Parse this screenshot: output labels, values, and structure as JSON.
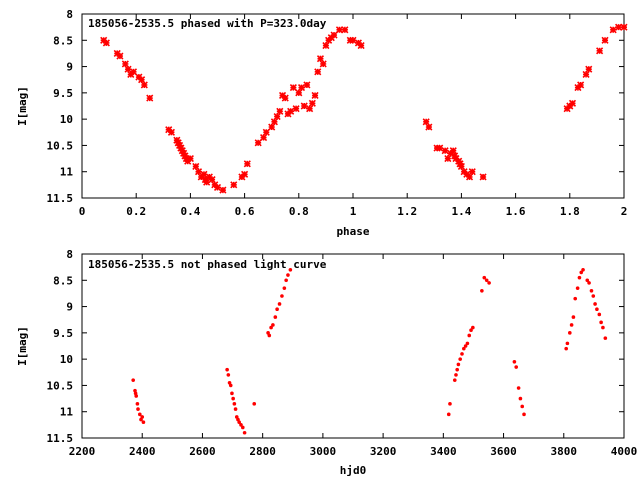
{
  "chart_data": [
    {
      "type": "scatter",
      "title": "185056-2535.5 phased with P=323.0day",
      "xlabel": "phase",
      "ylabel": "I[mag]",
      "xlim": [
        0,
        2
      ],
      "ylim": [
        11.5,
        8
      ],
      "y_inverted": true,
      "x_ticks": [
        "0",
        "0.2",
        "0.4",
        "0.6",
        "0.8",
        "1",
        "1.2",
        "1.4",
        "1.6",
        "1.8",
        "2"
      ],
      "x_tick_values": [
        0,
        0.2,
        0.4,
        0.6,
        0.8,
        1.0,
        1.2,
        1.4,
        1.6,
        1.8,
        2.0
      ],
      "y_ticks": [
        "8",
        "8.5",
        "9",
        "9.5",
        "10",
        "10.5",
        "11",
        "11.5"
      ],
      "y_tick_values": [
        8,
        8.5,
        9,
        9.5,
        10,
        10.5,
        11,
        11.5
      ],
      "grid": false,
      "marker_color": "#ff0000",
      "marker": "cross",
      "points": [
        [
          0.08,
          8.5
        ],
        [
          0.09,
          8.55
        ],
        [
          0.13,
          8.75
        ],
        [
          0.14,
          8.8
        ],
        [
          0.16,
          8.95
        ],
        [
          0.17,
          9.05
        ],
        [
          0.18,
          9.15
        ],
        [
          0.19,
          9.1
        ],
        [
          0.21,
          9.2
        ],
        [
          0.22,
          9.25
        ],
        [
          0.23,
          9.35
        ],
        [
          0.25,
          9.6
        ],
        [
          0.32,
          10.2
        ],
        [
          0.33,
          10.25
        ],
        [
          0.35,
          10.4
        ],
        [
          0.355,
          10.45
        ],
        [
          0.36,
          10.5
        ],
        [
          0.365,
          10.55
        ],
        [
          0.37,
          10.6
        ],
        [
          0.375,
          10.65
        ],
        [
          0.38,
          10.7
        ],
        [
          0.385,
          10.75
        ],
        [
          0.39,
          10.8
        ],
        [
          0.4,
          10.75
        ],
        [
          0.42,
          10.9
        ],
        [
          0.43,
          11.0
        ],
        [
          0.44,
          11.1
        ],
        [
          0.45,
          11.05
        ],
        [
          0.455,
          11.15
        ],
        [
          0.46,
          11.2
        ],
        [
          0.47,
          11.1
        ],
        [
          0.48,
          11.15
        ],
        [
          0.49,
          11.25
        ],
        [
          0.5,
          11.3
        ],
        [
          0.52,
          11.35
        ],
        [
          0.56,
          11.25
        ],
        [
          0.59,
          11.1
        ],
        [
          0.6,
          11.05
        ],
        [
          0.61,
          10.85
        ],
        [
          0.65,
          10.45
        ],
        [
          0.67,
          10.35
        ],
        [
          0.68,
          10.25
        ],
        [
          0.7,
          10.15
        ],
        [
          0.71,
          10.05
        ],
        [
          0.72,
          9.95
        ],
        [
          0.73,
          9.85
        ],
        [
          0.74,
          9.55
        ],
        [
          0.75,
          9.6
        ],
        [
          0.76,
          9.9
        ],
        [
          0.77,
          9.85
        ],
        [
          0.78,
          9.4
        ],
        [
          0.79,
          9.8
        ],
        [
          0.8,
          9.5
        ],
        [
          0.81,
          9.4
        ],
        [
          0.82,
          9.75
        ],
        [
          0.83,
          9.35
        ],
        [
          0.84,
          9.8
        ],
        [
          0.85,
          9.7
        ],
        [
          0.86,
          9.55
        ],
        [
          0.87,
          9.1
        ],
        [
          0.88,
          8.85
        ],
        [
          0.89,
          8.95
        ],
        [
          0.9,
          8.6
        ],
        [
          0.91,
          8.5
        ],
        [
          0.92,
          8.45
        ],
        [
          0.93,
          8.4
        ],
        [
          0.95,
          8.3
        ],
        [
          0.97,
          8.3
        ],
        [
          0.99,
          8.5
        ],
        [
          1.0,
          8.5
        ],
        [
          1.02,
          8.55
        ],
        [
          1.03,
          8.6
        ],
        [
          1.27,
          10.05
        ],
        [
          1.28,
          10.15
        ],
        [
          1.31,
          10.55
        ],
        [
          1.32,
          10.55
        ],
        [
          1.34,
          10.6
        ],
        [
          1.35,
          10.75
        ],
        [
          1.36,
          10.65
        ],
        [
          1.37,
          10.6
        ],
        [
          1.375,
          10.7
        ],
        [
          1.38,
          10.75
        ],
        [
          1.39,
          10.8
        ],
        [
          1.395,
          10.85
        ],
        [
          1.4,
          10.9
        ],
        [
          1.41,
          11.0
        ],
        [
          1.42,
          11.05
        ],
        [
          1.43,
          11.1
        ],
        [
          1.44,
          11.0
        ],
        [
          1.48,
          11.1
        ],
        [
          1.79,
          9.8
        ],
        [
          1.8,
          9.75
        ],
        [
          1.81,
          9.7
        ],
        [
          1.83,
          9.4
        ],
        [
          1.84,
          9.35
        ],
        [
          1.86,
          9.15
        ],
        [
          1.87,
          9.05
        ],
        [
          1.91,
          8.7
        ],
        [
          1.93,
          8.5
        ],
        [
          1.96,
          8.3
        ],
        [
          1.98,
          8.25
        ],
        [
          2.0,
          8.25
        ]
      ]
    },
    {
      "type": "scatter",
      "title": "185056-2535.5 not phased light curve",
      "xlabel": "hjd0",
      "ylabel": "I[mag]",
      "xlim": [
        2200,
        4000
      ],
      "ylim": [
        11.5,
        8
      ],
      "y_inverted": true,
      "x_ticks": [
        "2200",
        "2400",
        "2600",
        "2800",
        "3000",
        "3200",
        "3400",
        "3600",
        "3800",
        "4000"
      ],
      "x_tick_values": [
        2200,
        2400,
        2600,
        2800,
        3000,
        3200,
        3400,
        3600,
        3800,
        4000
      ],
      "y_ticks": [
        "8",
        "8.5",
        "9",
        "9.5",
        "10",
        "10.5",
        "11",
        "11.5"
      ],
      "y_tick_values": [
        8,
        8.5,
        9,
        9.5,
        10,
        10.5,
        11,
        11.5
      ],
      "grid": false,
      "marker_color": "#ff0000",
      "marker": "dot",
      "points": [
        [
          2370,
          10.4
        ],
        [
          2376,
          10.6
        ],
        [
          2378,
          10.65
        ],
        [
          2380,
          10.7
        ],
        [
          2384,
          10.85
        ],
        [
          2386,
          10.95
        ],
        [
          2392,
          11.05
        ],
        [
          2396,
          11.15
        ],
        [
          2400,
          11.1
        ],
        [
          2404,
          11.2
        ],
        [
          2682,
          10.2
        ],
        [
          2686,
          10.3
        ],
        [
          2690,
          10.45
        ],
        [
          2694,
          10.5
        ],
        [
          2698,
          10.65
        ],
        [
          2702,
          10.75
        ],
        [
          2706,
          10.85
        ],
        [
          2710,
          10.95
        ],
        [
          2714,
          11.1
        ],
        [
          2718,
          11.15
        ],
        [
          2722,
          11.2
        ],
        [
          2728,
          11.25
        ],
        [
          2734,
          11.3
        ],
        [
          2740,
          11.4
        ],
        [
          2772,
          10.85
        ],
        [
          2818,
          9.5
        ],
        [
          2822,
          9.55
        ],
        [
          2828,
          9.4
        ],
        [
          2834,
          9.35
        ],
        [
          2842,
          9.2
        ],
        [
          2848,
          9.05
        ],
        [
          2856,
          8.95
        ],
        [
          2864,
          8.8
        ],
        [
          2872,
          8.65
        ],
        [
          2878,
          8.5
        ],
        [
          2884,
          8.4
        ],
        [
          2892,
          8.3
        ],
        [
          3418,
          11.05
        ],
        [
          3422,
          10.85
        ],
        [
          3438,
          10.4
        ],
        [
          3442,
          10.3
        ],
        [
          3446,
          10.2
        ],
        [
          3450,
          10.1
        ],
        [
          3456,
          10.0
        ],
        [
          3462,
          9.9
        ],
        [
          3468,
          9.8
        ],
        [
          3474,
          9.75
        ],
        [
          3480,
          9.7
        ],
        [
          3486,
          9.55
        ],
        [
          3492,
          9.45
        ],
        [
          3498,
          9.4
        ],
        [
          3528,
          8.7
        ],
        [
          3536,
          8.45
        ],
        [
          3544,
          8.5
        ],
        [
          3552,
          8.55
        ],
        [
          3636,
          10.05
        ],
        [
          3642,
          10.15
        ],
        [
          3650,
          10.55
        ],
        [
          3656,
          10.75
        ],
        [
          3662,
          10.9
        ],
        [
          3668,
          11.05
        ],
        [
          3808,
          9.8
        ],
        [
          3812,
          9.7
        ],
        [
          3820,
          9.5
        ],
        [
          3826,
          9.35
        ],
        [
          3832,
          9.2
        ],
        [
          3838,
          8.85
        ],
        [
          3846,
          8.65
        ],
        [
          3852,
          8.45
        ],
        [
          3858,
          8.35
        ],
        [
          3864,
          8.3
        ],
        [
          3878,
          8.5
        ],
        [
          3884,
          8.55
        ],
        [
          3892,
          8.7
        ],
        [
          3898,
          8.8
        ],
        [
          3904,
          8.95
        ],
        [
          3910,
          9.05
        ],
        [
          3918,
          9.15
        ],
        [
          3924,
          9.3
        ],
        [
          3930,
          9.4
        ],
        [
          3938,
          9.6
        ]
      ]
    }
  ]
}
